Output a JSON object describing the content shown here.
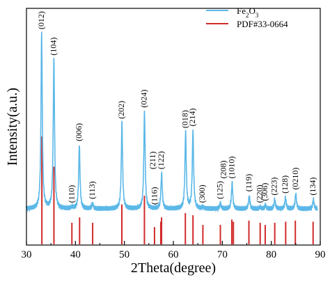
{
  "colors": {
    "fe2o3": "#5bb8e8",
    "pdf": "#d12a2a",
    "axis": "#000000"
  },
  "chart_data": {
    "type": "line",
    "xlabel": "2Theta(degree)",
    "ylabel": "Intensity(a.u.)",
    "xlim": [
      30,
      90
    ],
    "x_ticks": [
      30,
      40,
      50,
      60,
      70,
      80,
      90
    ],
    "y_ticks_shown": false,
    "legend_position": "top-right",
    "legend": [
      {
        "label_base": "Fe",
        "label_sub1": "2",
        "label_mid": "O",
        "label_sub2": "3",
        "color": "#5bb8e8",
        "style": "line"
      },
      {
        "label": "PDF#33-0664",
        "color": "#d12a2a",
        "style": "line"
      }
    ],
    "series": [
      {
        "name": "Fe2O3",
        "color": "#5bb8e8",
        "baseline": 0.06,
        "peaks": [
          {
            "x": 33.1,
            "y": 1.0,
            "label": "(012)"
          },
          {
            "x": 35.6,
            "y": 0.86,
            "label": "(104)"
          },
          {
            "x": 39.3,
            "y": 0.07,
            "label": "(110)"
          },
          {
            "x": 40.8,
            "y": 0.4,
            "label": "(006)"
          },
          {
            "x": 43.5,
            "y": 0.09,
            "label": "(113)"
          },
          {
            "x": 49.5,
            "y": 0.52,
            "label": "(202)"
          },
          {
            "x": 54.1,
            "y": 0.58,
            "label": "(024)"
          },
          {
            "x": 56.2,
            "y": 0.06,
            "label": "(116)"
          },
          {
            "x": 57.6,
            "y": 0.25,
            "label": "(211)\n(122)"
          },
          {
            "x": 62.5,
            "y": 0.47,
            "label": "(018)"
          },
          {
            "x": 64.0,
            "y": 0.48,
            "label": "(214)"
          },
          {
            "x": 66.0,
            "y": 0.07,
            "label": "(300)"
          },
          {
            "x": 69.6,
            "y": 0.09,
            "label": "(125)"
          },
          {
            "x": 72.0,
            "y": 0.2,
            "label": "(208)\n(1010)"
          },
          {
            "x": 75.5,
            "y": 0.13,
            "label": "(119)"
          },
          {
            "x": 77.7,
            "y": 0.07,
            "label": "(220)"
          },
          {
            "x": 78.8,
            "y": 0.08,
            "label": "(306)"
          },
          {
            "x": 80.7,
            "y": 0.11,
            "label": "(223)"
          },
          {
            "x": 82.9,
            "y": 0.12,
            "label": "(128)"
          },
          {
            "x": 85.0,
            "y": 0.14,
            "label": "(0210)"
          },
          {
            "x": 88.6,
            "y": 0.11,
            "label": "(134)"
          }
        ]
      },
      {
        "name": "PDF#33-0664",
        "color": "#d12a2a",
        "type": "stick",
        "x": [
          33.15,
          35.61,
          39.28,
          40.85,
          43.52,
          49.48,
          54.09,
          56.15,
          57.43,
          57.59,
          62.45,
          64.01,
          66.03,
          69.6,
          71.94,
          72.26,
          75.43,
          77.73,
          78.76,
          80.71,
          82.94,
          84.91,
          88.54
        ],
        "values": [
          1.0,
          0.72,
          0.2,
          0.25,
          0.2,
          0.37,
          0.45,
          0.16,
          0.21,
          0.25,
          0.29,
          0.27,
          0.18,
          0.18,
          0.23,
          0.21,
          0.22,
          0.2,
          0.18,
          0.2,
          0.21,
          0.22,
          0.21
        ]
      }
    ]
  }
}
